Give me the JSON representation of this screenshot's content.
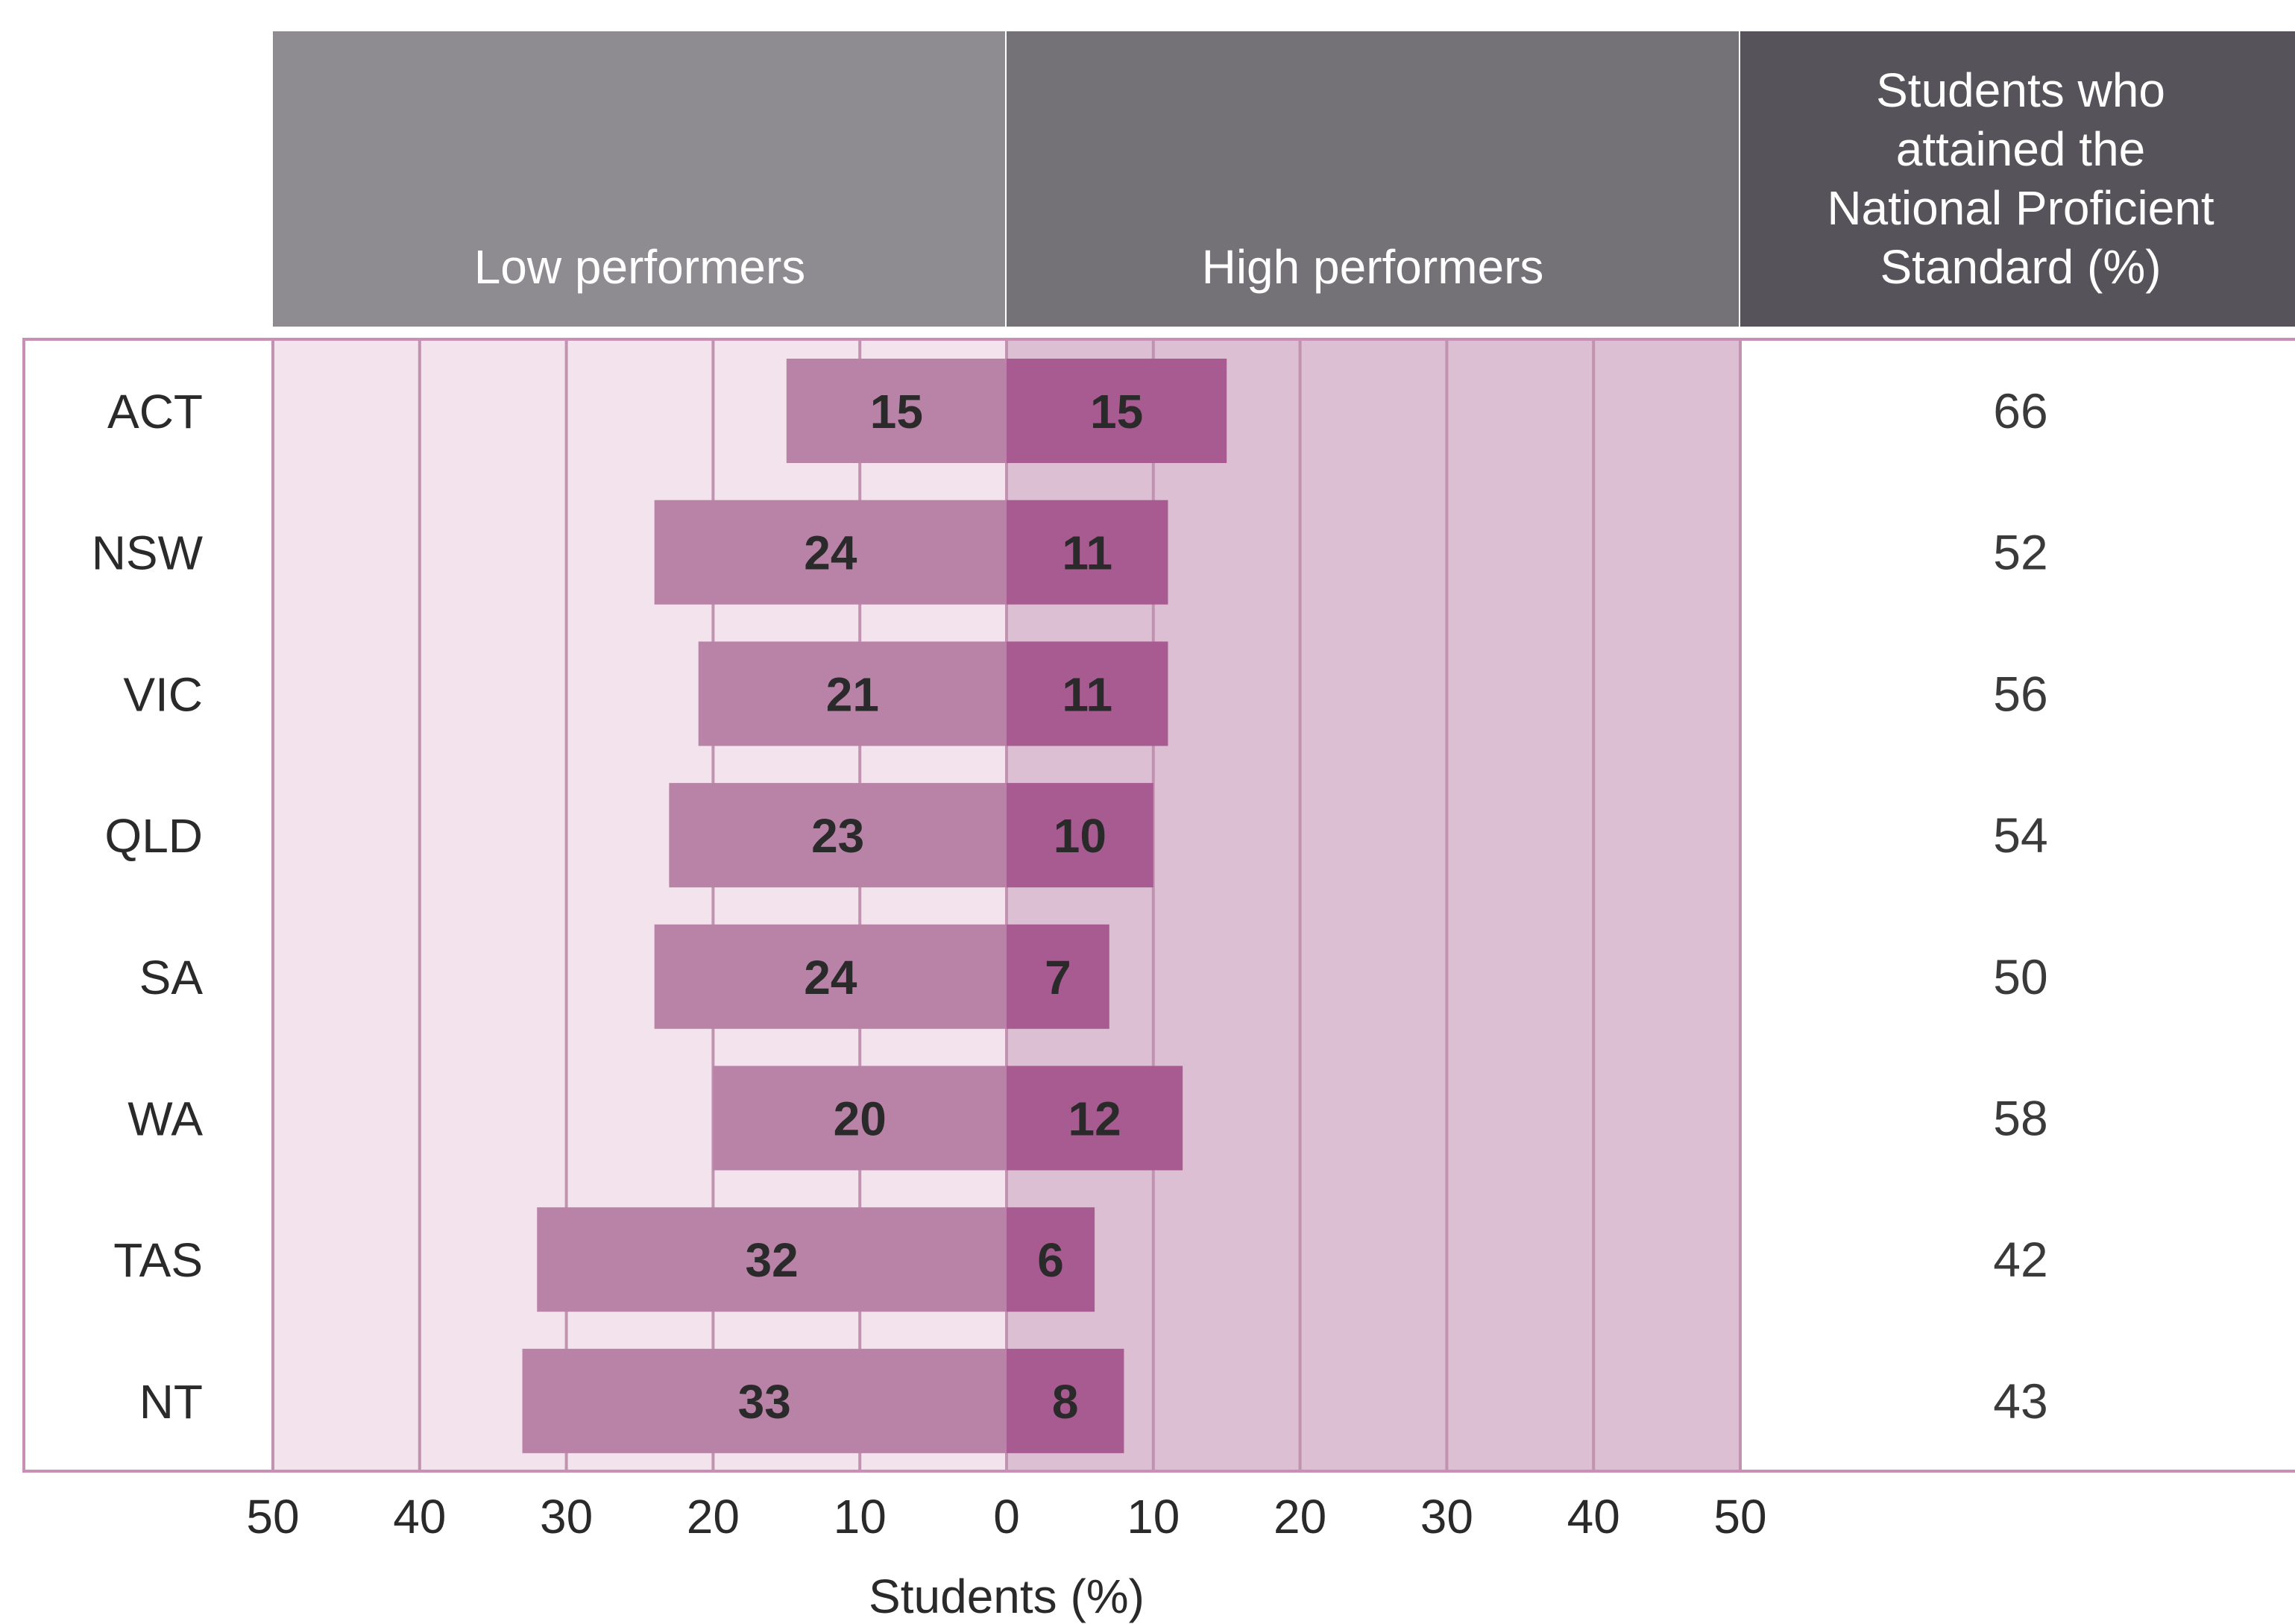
{
  "chart_data": {
    "type": "bar",
    "orientation": "horizontal-diverging",
    "headers": {
      "low": "Low performers",
      "high": "High performers",
      "proficient": [
        "Students who",
        "attained the",
        "National Proficient",
        "Standard (%)"
      ]
    },
    "categories": [
      "ACT",
      "NSW",
      "VIC",
      "QLD",
      "SA",
      "WA",
      "TAS",
      "NT"
    ],
    "series": [
      {
        "name": "Low performers",
        "values": [
          15,
          24,
          21,
          23,
          24,
          20,
          32,
          33
        ]
      },
      {
        "name": "High performers",
        "values": [
          15,
          11,
          11,
          10,
          7,
          12,
          6,
          8
        ]
      }
    ],
    "proficient_values": [
      66,
      52,
      56,
      54,
      50,
      58,
      42,
      43
    ],
    "x_ticks": [
      "50",
      "40",
      "30",
      "20",
      "10",
      "0",
      "10",
      "20",
      "30",
      "40",
      "50"
    ],
    "xlabel": "Students (%)",
    "xlim": [
      -50,
      50
    ],
    "grid": true,
    "colors": {
      "header_low": "#8e8c90",
      "header_high": "#747277",
      "header_prof": "#56545a",
      "panel_low": "#f2e3ec",
      "panel_high": "#dcbfd3",
      "grid": "#c193b1",
      "frame": "#c98fb5",
      "bar_low": "#b983a8",
      "bar_high": "#a75b91"
    }
  }
}
